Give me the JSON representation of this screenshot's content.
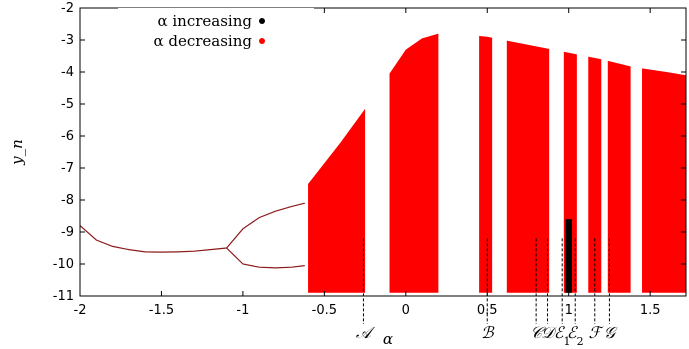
{
  "chart_data": {
    "type": "scatter",
    "title": "",
    "xlabel": "α",
    "ylabel": "y_n",
    "xlim": [
      -2,
      1.72
    ],
    "ylim": [
      -11,
      -2
    ],
    "x_ticks": [
      "-2",
      "-1.5",
      "-1",
      "-0.5",
      "0",
      "0.5",
      "1",
      "1.5"
    ],
    "x_tick_values": [
      -2,
      -1.5,
      -1,
      -0.5,
      0,
      0.5,
      1,
      1.5
    ],
    "y_ticks": [
      "-2",
      "-3",
      "-4",
      "-5",
      "-6",
      "-7",
      "-8",
      "-9",
      "-10",
      "-11"
    ],
    "y_tick_values": [
      -2,
      -3,
      -4,
      -5,
      -6,
      -7,
      -8,
      -9,
      -10,
      -11
    ],
    "legend": {
      "position": "top-left",
      "entries": [
        {
          "label": "α increasing",
          "color": "#000000"
        },
        {
          "label": "α decreasing",
          "color": "#ff0000"
        }
      ]
    },
    "colors": {
      "increasing": "#000000",
      "decreasing": "#ff0000",
      "single_branch": "#8b1a1a"
    },
    "period1_branch": {
      "x": [
        -2.0,
        -1.9,
        -1.8,
        -1.7,
        -1.6,
        -1.5,
        -1.4,
        -1.3,
        -1.2,
        -1.1
      ],
      "y": [
        -8.8,
        -9.25,
        -9.45,
        -9.55,
        -9.62,
        -9.63,
        -9.62,
        -9.6,
        -9.55,
        -9.5
      ]
    },
    "period2_upper": {
      "x": [
        -1.1,
        -1.0,
        -0.9,
        -0.8,
        -0.7,
        -0.62
      ],
      "y": [
        -9.5,
        -8.9,
        -8.55,
        -8.35,
        -8.2,
        -8.1
      ]
    },
    "period2_lower": {
      "x": [
        -1.1,
        -1.0,
        -0.9,
        -0.8,
        -0.7,
        -0.62
      ],
      "y": [
        -9.5,
        -10.0,
        -10.1,
        -10.12,
        -10.1,
        -10.05
      ]
    },
    "chaotic_upper_envelope": {
      "x": [
        -0.6,
        -0.4,
        -0.2,
        0.0,
        0.1,
        0.2,
        0.3,
        0.5,
        0.8,
        1.0,
        1.2,
        1.4,
        1.6,
        1.72
      ],
      "y": [
        -7.5,
        -6.2,
        -4.8,
        -3.3,
        -2.95,
        -2.8,
        -2.8,
        -2.9,
        -3.2,
        -3.4,
        -3.6,
        -3.85,
        -4.0,
        -4.1
      ]
    },
    "chaotic_lower_bound": -10.9,
    "periodic_windows": [
      {
        "x_start": -0.25,
        "x_end": -0.1
      },
      {
        "x_start": 0.2,
        "x_end": 0.45
      },
      {
        "x_start": 0.53,
        "x_end": 0.62
      },
      {
        "x_start": 0.88,
        "x_end": 0.97
      },
      {
        "x_start": 1.05,
        "x_end": 1.12
      },
      {
        "x_start": 1.2,
        "x_end": 1.24
      },
      {
        "x_start": 1.38,
        "x_end": 1.45
      }
    ],
    "bifurcation_markers": [
      {
        "label": "𝒜",
        "subscript": "",
        "x": -0.26
      },
      {
        "label": "ℬ",
        "subscript": "",
        "x": 0.5
      },
      {
        "label": "𝒞",
        "subscript": "",
        "x": 0.8
      },
      {
        "label": "𝒟",
        "subscript": "",
        "x": 0.87
      },
      {
        "label": "ℰ",
        "subscript": "1",
        "x": 0.96
      },
      {
        "label": "ℰ",
        "subscript": "2",
        "x": 1.04
      },
      {
        "label": "ℱ",
        "subscript": "",
        "x": 1.16
      },
      {
        "label": "𝒢",
        "subscript": "",
        "x": 1.25
      }
    ]
  }
}
